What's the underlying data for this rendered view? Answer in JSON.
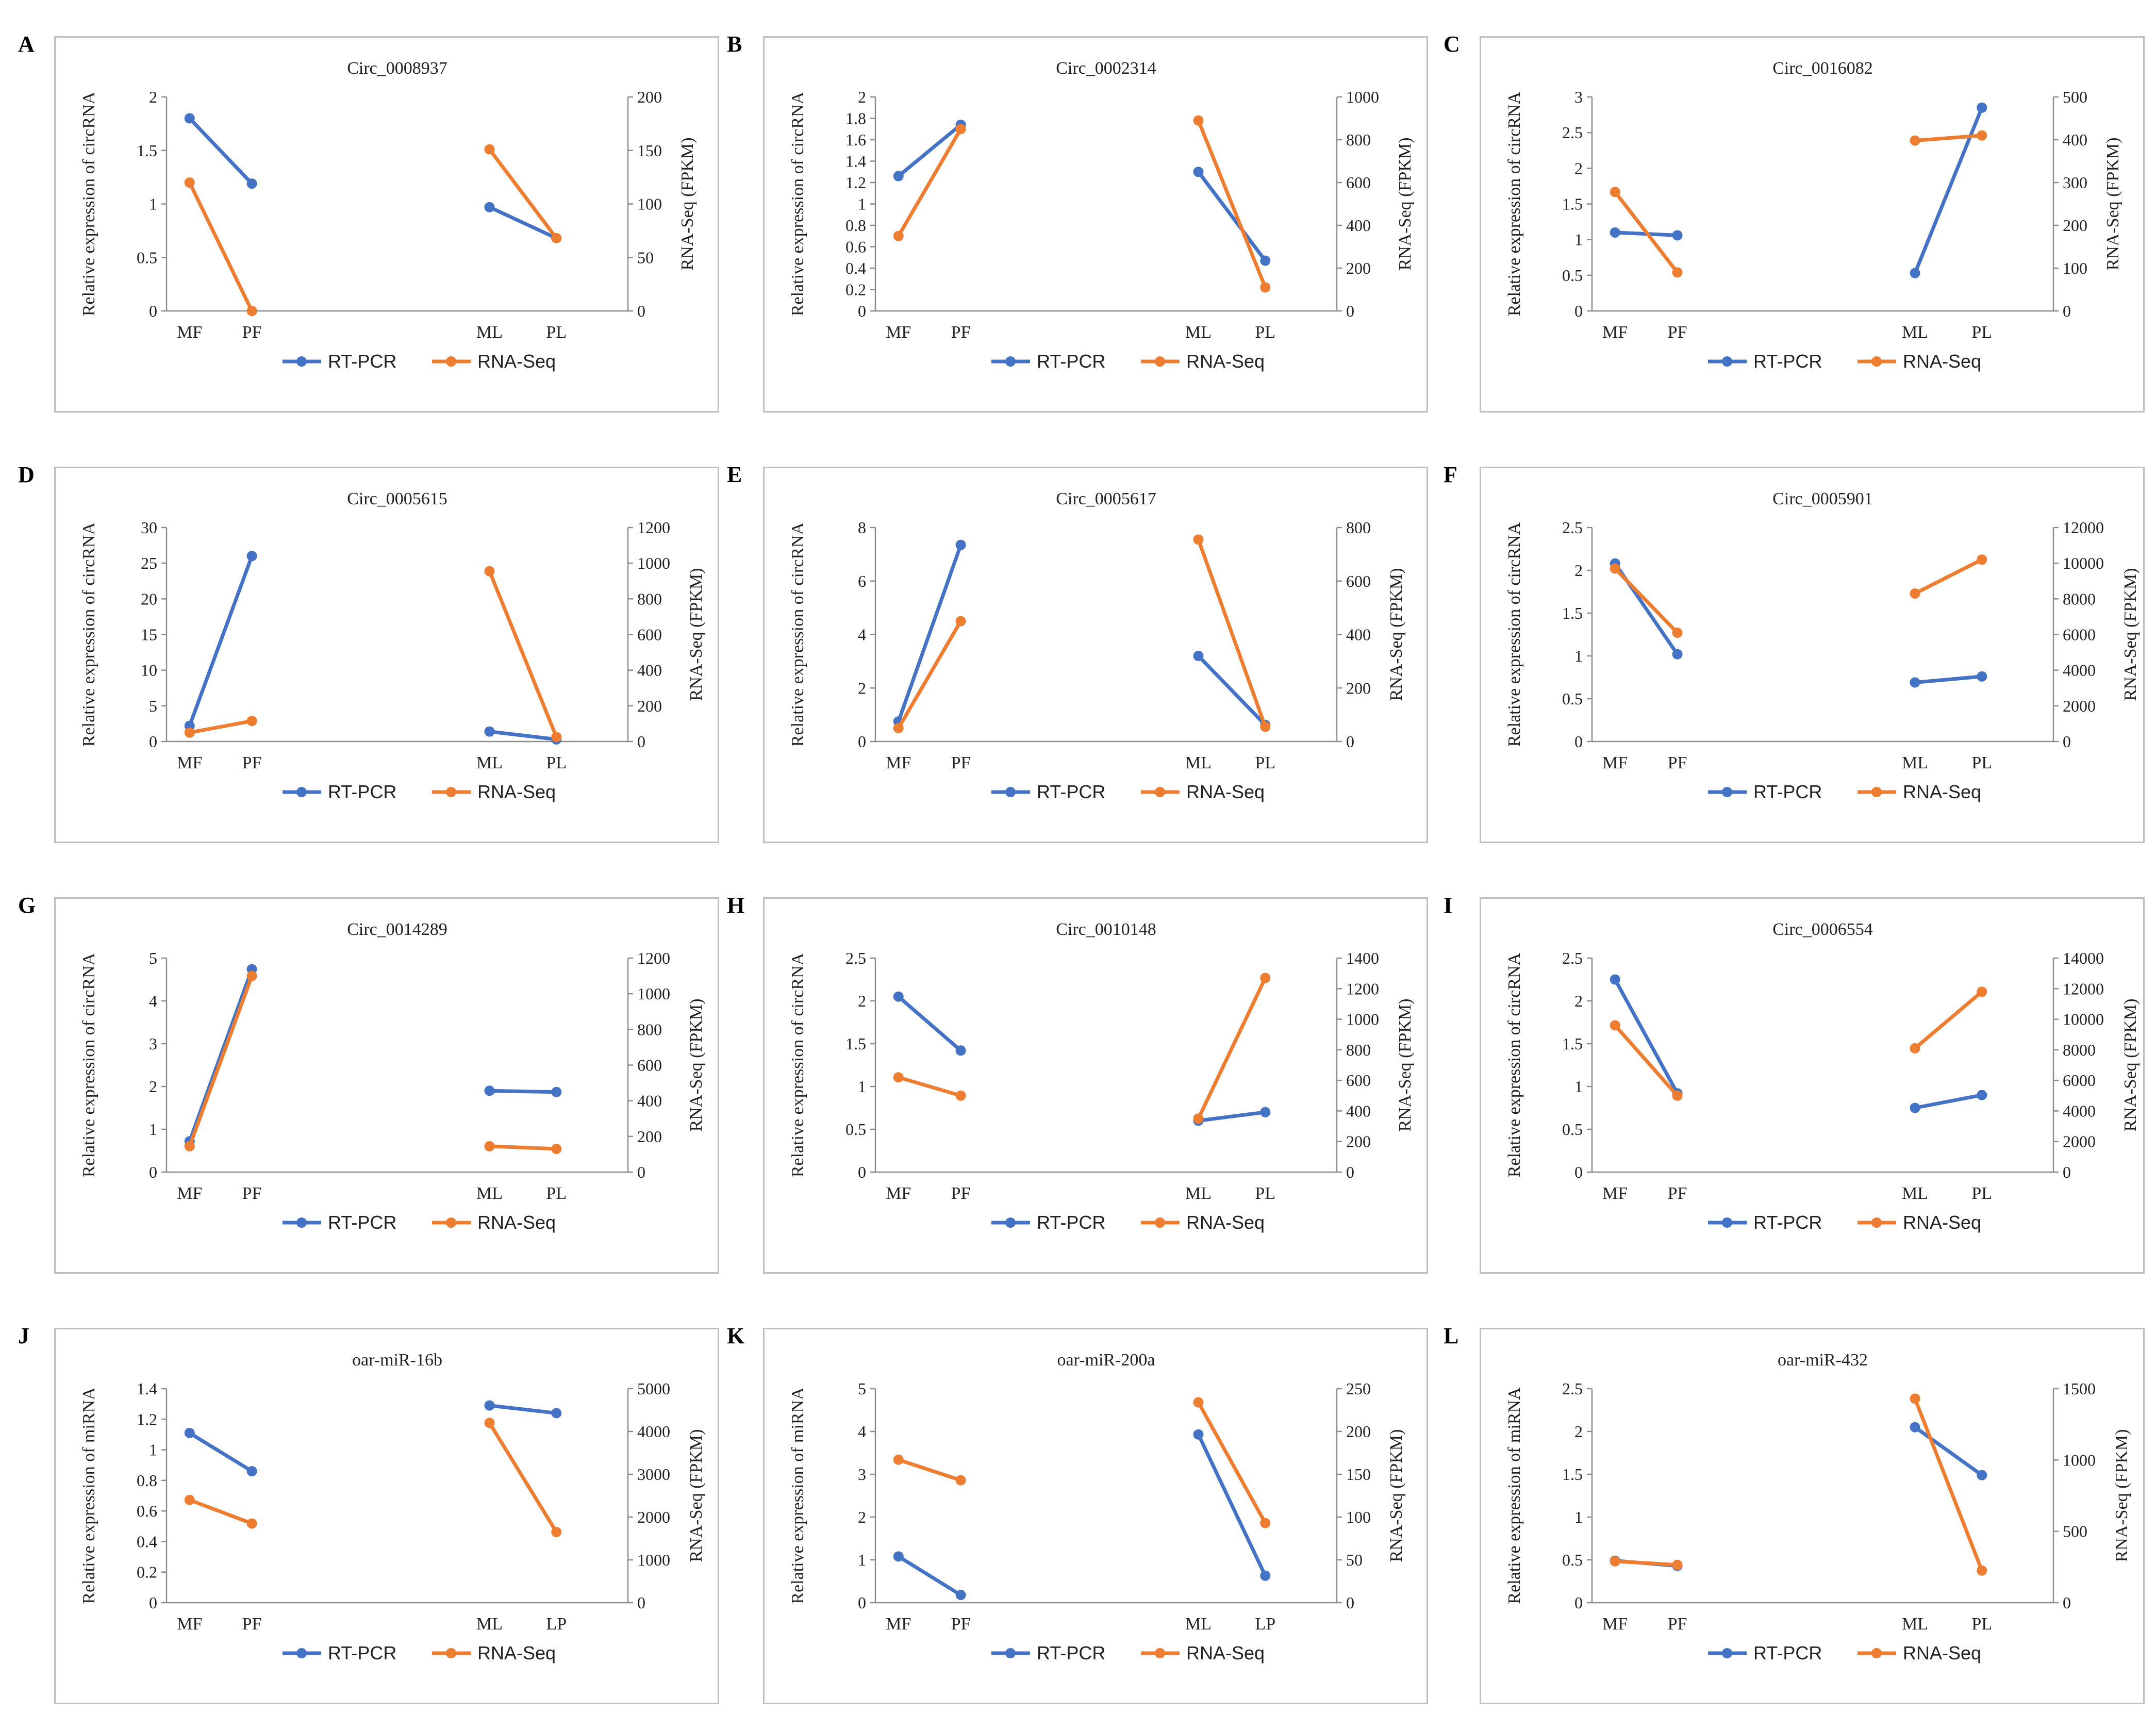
{
  "colors": {
    "rt_pcr": "#4472C4",
    "rna_seq": "#ED7D31",
    "axis": "#8c8c8c",
    "border": "#bfbfbf"
  },
  "chart_data": [
    {
      "type": "line",
      "panel": "A",
      "title": "Circ_0008937",
      "categories": [
        "MF",
        "PF",
        "ML",
        "PL"
      ],
      "ylabel_left": "Relative expression of circRNA",
      "ylabel_right": "RNA-Seq (FPKM)",
      "yticks_left": [
        "0",
        "0.5",
        "1",
        "1.5",
        "2"
      ],
      "ylim_left": [
        0,
        2
      ],
      "yticks_right": [
        "0",
        "50",
        "100",
        "150",
        "200"
      ],
      "ylim_right": [
        0,
        200
      ],
      "series": [
        {
          "name": "RT-PCR",
          "axis": "left",
          "values": [
            1.8,
            1.19,
            0.97,
            0.68
          ]
        },
        {
          "name": "RNA-Seq",
          "axis": "right",
          "values": [
            120,
            0,
            151,
            68
          ]
        }
      ]
    },
    {
      "type": "line",
      "panel": "B",
      "title": "Circ_0002314",
      "categories": [
        "MF",
        "PF",
        "ML",
        "PL"
      ],
      "ylabel_left": "Relative expression of circRNA",
      "ylabel_right": "RNA-Seq (FPKM)",
      "yticks_left": [
        "0",
        "0.2",
        "0.4",
        "0.6",
        "0.8",
        "1",
        "1.2",
        "1.4",
        "1.6",
        "1.8",
        "2"
      ],
      "ylim_left": [
        0,
        2
      ],
      "yticks_right": [
        "0",
        "200",
        "400",
        "600",
        "800",
        "1000"
      ],
      "ylim_right": [
        0,
        1000
      ],
      "series": [
        {
          "name": "RT-PCR",
          "axis": "left",
          "values": [
            1.26,
            1.74,
            1.3,
            0.47
          ]
        },
        {
          "name": "RNA-Seq",
          "axis": "right",
          "values": [
            350,
            850,
            890,
            110
          ]
        }
      ]
    },
    {
      "type": "line",
      "panel": "C",
      "title": "Circ_0016082",
      "categories": [
        "MF",
        "PF",
        "ML",
        "PL"
      ],
      "ylabel_left": "Relative expression of circRNA",
      "ylabel_right": "RNA-Seq (FPKM)",
      "yticks_left": [
        "0",
        "0.5",
        "1",
        "1.5",
        "2",
        "2.5",
        "3"
      ],
      "ylim_left": [
        0,
        3
      ],
      "yticks_right": [
        "0",
        "100",
        "200",
        "300",
        "400",
        "500"
      ],
      "ylim_right": [
        0,
        500
      ],
      "series": [
        {
          "name": "RT-PCR",
          "axis": "left",
          "values": [
            1.1,
            1.06,
            0.53,
            2.85
          ]
        },
        {
          "name": "RNA-Seq",
          "axis": "right",
          "values": [
            278,
            90,
            398,
            410
          ]
        }
      ]
    },
    {
      "type": "line",
      "panel": "D",
      "title": "Circ_0005615",
      "categories": [
        "MF",
        "PF",
        "ML",
        "PL"
      ],
      "ylabel_left": "Relative expression of circRNA",
      "ylabel_right": "RNA-Seq (FPKM)",
      "yticks_left": [
        "0",
        "5",
        "10",
        "15",
        "20",
        "25",
        "30"
      ],
      "ylim_left": [
        0,
        30
      ],
      "yticks_right": [
        "0",
        "200",
        "400",
        "600",
        "800",
        "1000",
        "1200"
      ],
      "ylim_right": [
        0,
        1200
      ],
      "series": [
        {
          "name": "RT-PCR",
          "axis": "left",
          "values": [
            2.2,
            26.0,
            1.4,
            0.3
          ]
        },
        {
          "name": "RNA-Seq",
          "axis": "right",
          "values": [
            50,
            115,
            955,
            25
          ]
        }
      ]
    },
    {
      "type": "line",
      "panel": "E",
      "title": "Circ_0005617",
      "categories": [
        "MF",
        "PF",
        "ML",
        "PL"
      ],
      "ylabel_left": "Relative expression of circRNA",
      "ylabel_right": "RNA-Seq (FPKM)",
      "yticks_left": [
        "0",
        "2",
        "4",
        "6",
        "8"
      ],
      "ylim_left": [
        0,
        8
      ],
      "yticks_right": [
        "0",
        "200",
        "400",
        "600",
        "800"
      ],
      "ylim_right": [
        0,
        800
      ],
      "series": [
        {
          "name": "RT-PCR",
          "axis": "left",
          "values": [
            0.75,
            7.35,
            3.2,
            0.62
          ]
        },
        {
          "name": "RNA-Seq",
          "axis": "right",
          "values": [
            50,
            450,
            755,
            55
          ]
        }
      ]
    },
    {
      "type": "line",
      "panel": "F",
      "title": "Circ_0005901",
      "categories": [
        "MF",
        "PF",
        "ML",
        "PL"
      ],
      "ylabel_left": "Relative expression of circRNA",
      "ylabel_right": "RNA-Seq (FPKM)",
      "yticks_left": [
        "0",
        "0.5",
        "1",
        "1.5",
        "2",
        "2.5"
      ],
      "ylim_left": [
        0,
        2.5
      ],
      "yticks_right": [
        "0",
        "2000",
        "4000",
        "6000",
        "8000",
        "10000",
        "12000"
      ],
      "ylim_right": [
        0,
        12000
      ],
      "series": [
        {
          "name": "RT-PCR",
          "axis": "left",
          "values": [
            2.08,
            1.02,
            0.69,
            0.76
          ]
        },
        {
          "name": "RNA-Seq",
          "axis": "right",
          "values": [
            9700,
            6100,
            8300,
            10200
          ]
        }
      ]
    },
    {
      "type": "line",
      "panel": "G",
      "title": "Circ_0014289",
      "categories": [
        "MF",
        "PF",
        "ML",
        "PL"
      ],
      "ylabel_left": "Relative expression of circRNA",
      "ylabel_right": "RNA-Seq (FPKM)",
      "yticks_left": [
        "0",
        "1",
        "2",
        "3",
        "4",
        "5"
      ],
      "ylim_left": [
        0,
        5
      ],
      "yticks_right": [
        "0",
        "200",
        "400",
        "600",
        "800",
        "1000",
        "1200"
      ],
      "ylim_right": [
        0,
        1200
      ],
      "series": [
        {
          "name": "RT-PCR",
          "axis": "left",
          "values": [
            0.72,
            4.74,
            1.9,
            1.87
          ]
        },
        {
          "name": "RNA-Seq",
          "axis": "right",
          "values": [
            145,
            1100,
            145,
            130
          ]
        }
      ]
    },
    {
      "type": "line",
      "panel": "H",
      "title": "Circ_0010148",
      "categories": [
        "MF",
        "PF",
        "ML",
        "PL"
      ],
      "ylabel_left": "Relative expression of circRNA",
      "ylabel_right": "RNA-Seq (FPKM)",
      "yticks_left": [
        "0",
        "0.5",
        "1",
        "1.5",
        "2",
        "2.5"
      ],
      "ylim_left": [
        0,
        2.5
      ],
      "yticks_right": [
        "0",
        "200",
        "400",
        "600",
        "800",
        "1000",
        "1200",
        "1400"
      ],
      "ylim_right": [
        0,
        1400
      ],
      "series": [
        {
          "name": "RT-PCR",
          "axis": "left",
          "values": [
            2.05,
            1.42,
            0.6,
            0.7
          ]
        },
        {
          "name": "RNA-Seq",
          "axis": "right",
          "values": [
            620,
            500,
            350,
            1270
          ]
        }
      ]
    },
    {
      "type": "line",
      "panel": "I",
      "title": "Circ_0006554",
      "categories": [
        "MF",
        "PF",
        "ML",
        "PL"
      ],
      "ylabel_left": "Relative expression of circRNA",
      "ylabel_right": "RNA-Seq (FPKM)",
      "yticks_left": [
        "0",
        "0.5",
        "1",
        "1.5",
        "2",
        "2.5"
      ],
      "ylim_left": [
        0,
        2.5
      ],
      "yticks_right": [
        "0",
        "2000",
        "4000",
        "6000",
        "8000",
        "10000",
        "12000",
        "14000"
      ],
      "ylim_right": [
        0,
        14000
      ],
      "series": [
        {
          "name": "RT-PCR",
          "axis": "left",
          "values": [
            2.25,
            0.92,
            0.75,
            0.9
          ]
        },
        {
          "name": "RNA-Seq",
          "axis": "right",
          "values": [
            9600,
            5000,
            8100,
            11800
          ]
        }
      ]
    },
    {
      "type": "line",
      "panel": "J",
      "title": "oar-miR-16b",
      "categories": [
        "MF",
        "PF",
        "ML",
        "LP"
      ],
      "ylabel_left": "Relative expression of miRNA",
      "ylabel_right": "RNA-Seq (FPKM)",
      "yticks_left": [
        "0",
        "0.2",
        "0.4",
        "0.6",
        "0.8",
        "1",
        "1.2",
        "1.4"
      ],
      "ylim_left": [
        0,
        1.4
      ],
      "yticks_right": [
        "0",
        "1000",
        "2000",
        "3000",
        "4000",
        "5000"
      ],
      "ylim_right": [
        0,
        5000
      ],
      "series": [
        {
          "name": "RT-PCR",
          "axis": "left",
          "values": [
            1.11,
            0.86,
            1.29,
            1.24
          ]
        },
        {
          "name": "RNA-Seq",
          "axis": "right",
          "values": [
            2400,
            1850,
            4200,
            1650
          ]
        }
      ]
    },
    {
      "type": "line",
      "panel": "K",
      "title": "oar-miR-200a",
      "categories": [
        "MF",
        "PF",
        "ML",
        "LP"
      ],
      "ylabel_left": "Relative expression of miRNA",
      "ylabel_right": "RNA-Seq (FPKM)",
      "yticks_left": [
        "0",
        "1",
        "2",
        "3",
        "4",
        "5"
      ],
      "ylim_left": [
        0,
        5
      ],
      "yticks_right": [
        "0",
        "50",
        "100",
        "150",
        "200",
        "250"
      ],
      "ylim_right": [
        0,
        250
      ],
      "series": [
        {
          "name": "RT-PCR",
          "axis": "left",
          "values": [
            1.08,
            0.18,
            3.93,
            0.63
          ]
        },
        {
          "name": "RNA-Seq",
          "axis": "right",
          "values": [
            167,
            143,
            234,
            93
          ]
        }
      ]
    },
    {
      "type": "line",
      "panel": "L",
      "title": "oar-miR-432",
      "categories": [
        "MF",
        "PF",
        "ML",
        "PL"
      ],
      "ylabel_left": "Relative expression of miRNA",
      "ylabel_right": "RNA-Seq (FPKM)",
      "yticks_left": [
        "0",
        "0.5",
        "1",
        "1.5",
        "2",
        "2.5"
      ],
      "ylim_left": [
        0,
        2.5
      ],
      "yticks_right": [
        "0",
        "500",
        "1000",
        "1500"
      ],
      "ylim_right": [
        0,
        1500
      ],
      "series": [
        {
          "name": "RT-PCR",
          "axis": "left",
          "values": [
            0.49,
            0.43,
            2.05,
            1.49
          ]
        },
        {
          "name": "RNA-Seq",
          "axis": "right",
          "values": [
            290,
            265,
            1430,
            225
          ]
        }
      ]
    }
  ]
}
